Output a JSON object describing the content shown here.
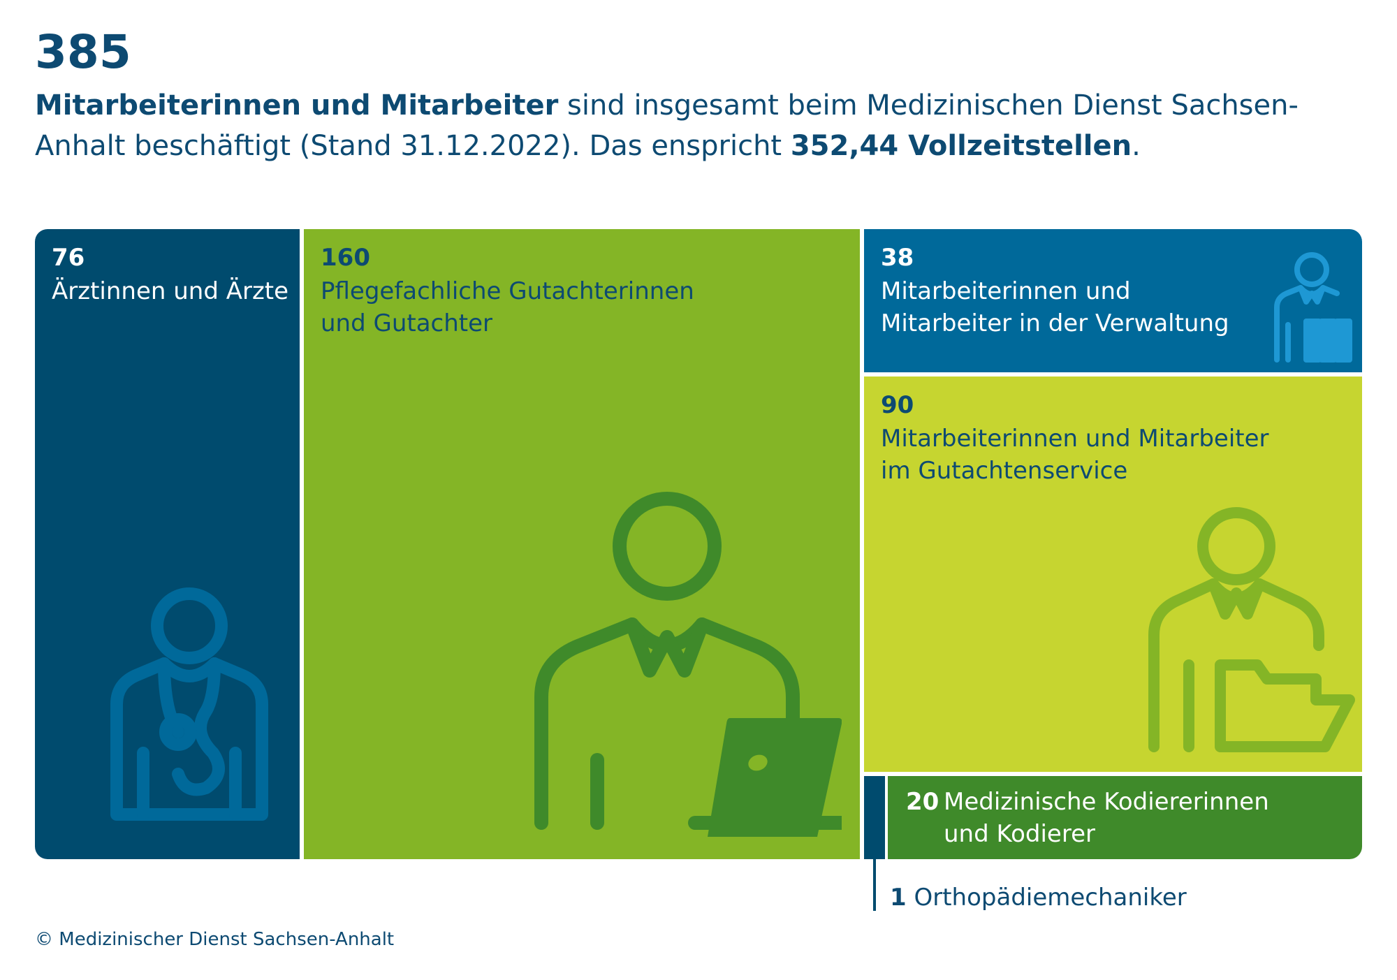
{
  "header": {
    "total": "385",
    "line_bold": "Mitarbeiterinnen und Mitarbeiter",
    "line_rest": " sind insgesamt beim Medizinischen Dienst Sachsen-Anhalt beschäftigt (Stand 31.12.2022). Das enspricht ",
    "fte_bold": "352,44 Vollzeitstellen",
    "fte_end": "."
  },
  "chart_data": {
    "type": "treemap",
    "total": 385,
    "items": [
      {
        "value": 76,
        "label": "Ärztinnen und Ärzte",
        "color": "#004b6e",
        "icon": "doctor-stethoscope-icon"
      },
      {
        "value": 160,
        "label": "Pflegefachliche Gutachterinnen und Gutachter",
        "color": "#84b526",
        "icon": "person-laptop-icon"
      },
      {
        "value": 38,
        "label": "Mitarbeiterinnen und Mitarbeiter in der Verwaltung",
        "color": "#00699a",
        "icon": "person-binders-icon"
      },
      {
        "value": 90,
        "label": "Mitarbeiterinnen und Mitarbeiter im Gutachtenservice",
        "color": "#c6d530",
        "icon": "person-folder-icon"
      },
      {
        "value": 20,
        "label": "Medizinische Kodiererinnen und Kodierer",
        "color": "#3f8a2a"
      },
      {
        "value": 1,
        "label": "Orthopädiemechaniker",
        "color": "#004b6e"
      }
    ]
  },
  "tiles": {
    "t0": {
      "num": "76",
      "label1": "Ärztinnen und Ärzte"
    },
    "t1": {
      "num": "160",
      "label1": "Pflegefachliche Gutachterinnen",
      "label2": "und Gutachter"
    },
    "t2": {
      "num": "38",
      "label1": "Mitarbeiterinnen und",
      "label2": "Mitarbeiter in der Verwaltung"
    },
    "t3": {
      "num": "90",
      "label1": "Mitarbeiterinnen und Mitarbeiter",
      "label2": "im Gutachtenservice"
    },
    "t4": {
      "num": "20",
      "label1": "Medizinische Kodiererinnen",
      "label2": "und Kodierer"
    },
    "t5": {
      "num": "1",
      "label1": "Orthopädiemechaniker"
    }
  },
  "footer": {
    "copyright": "© Medizinischer Dienst Sachsen-Anhalt"
  }
}
